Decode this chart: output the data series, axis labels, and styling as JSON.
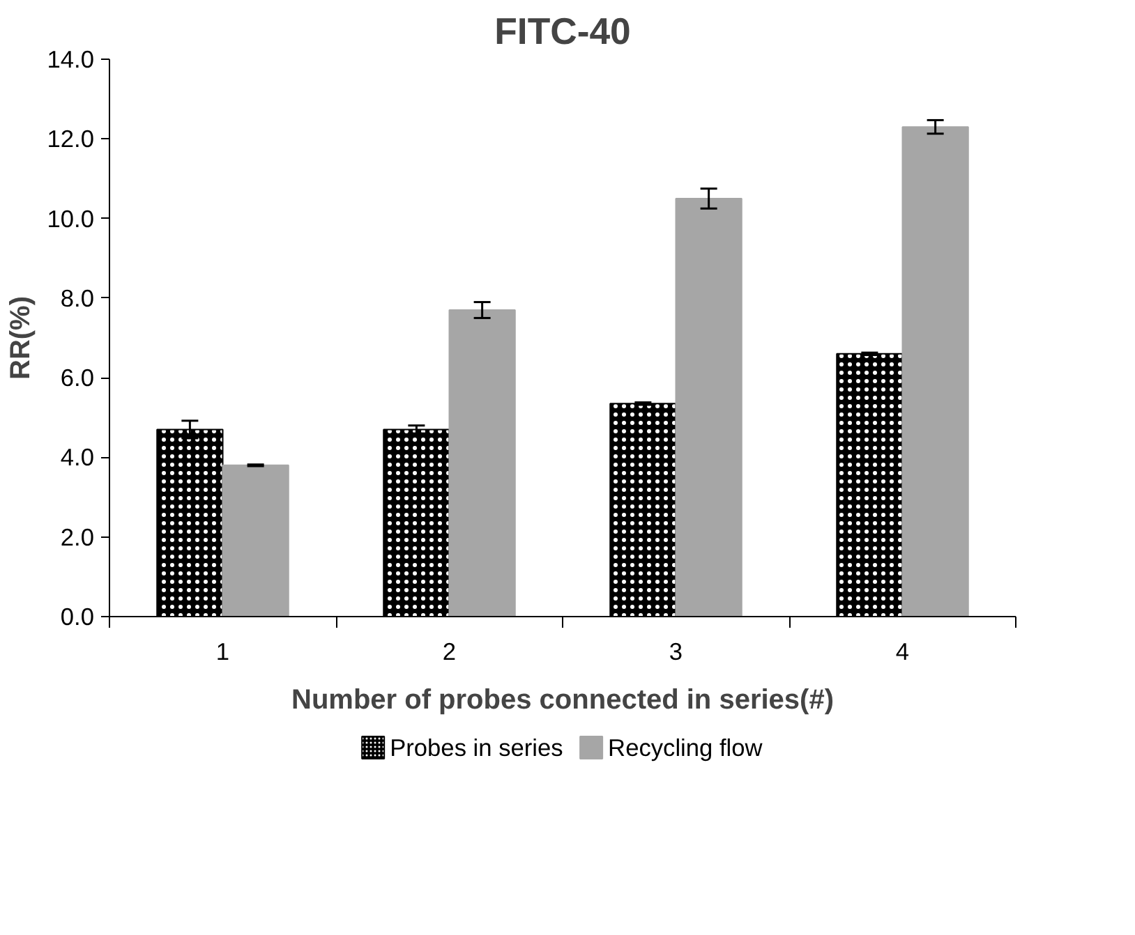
{
  "chart_data": {
    "type": "bar",
    "title": "FITC-40",
    "xlabel": "Number of probes connected in series(#)",
    "ylabel": "RR(%)",
    "categories": [
      "1",
      "2",
      "3",
      "4"
    ],
    "series": [
      {
        "name": "Probes in series",
        "color": "#000000",
        "values": [
          4.7,
          4.7,
          5.35,
          6.6
        ],
        "errors": [
          0.22,
          0.1,
          0.03,
          0.03
        ]
      },
      {
        "name": "Recycling flow",
        "color": "#a6a6a6",
        "values": [
          3.8,
          7.7,
          10.5,
          12.3
        ],
        "errors": [
          0.02,
          0.2,
          0.25,
          0.17
        ]
      }
    ],
    "ylim": [
      0,
      14
    ],
    "yticks": [
      {
        "value": 0,
        "label": "0.0"
      },
      {
        "value": 2,
        "label": "2.0"
      },
      {
        "value": 4,
        "label": "4.0"
      },
      {
        "value": 6,
        "label": "6.0"
      },
      {
        "value": 8,
        "label": "8.0"
      },
      {
        "value": 10,
        "label": "10.0"
      },
      {
        "value": 12,
        "label": "12.0"
      },
      {
        "value": 14,
        "label": "14.0"
      }
    ],
    "grid": false,
    "legend": "bottom"
  }
}
